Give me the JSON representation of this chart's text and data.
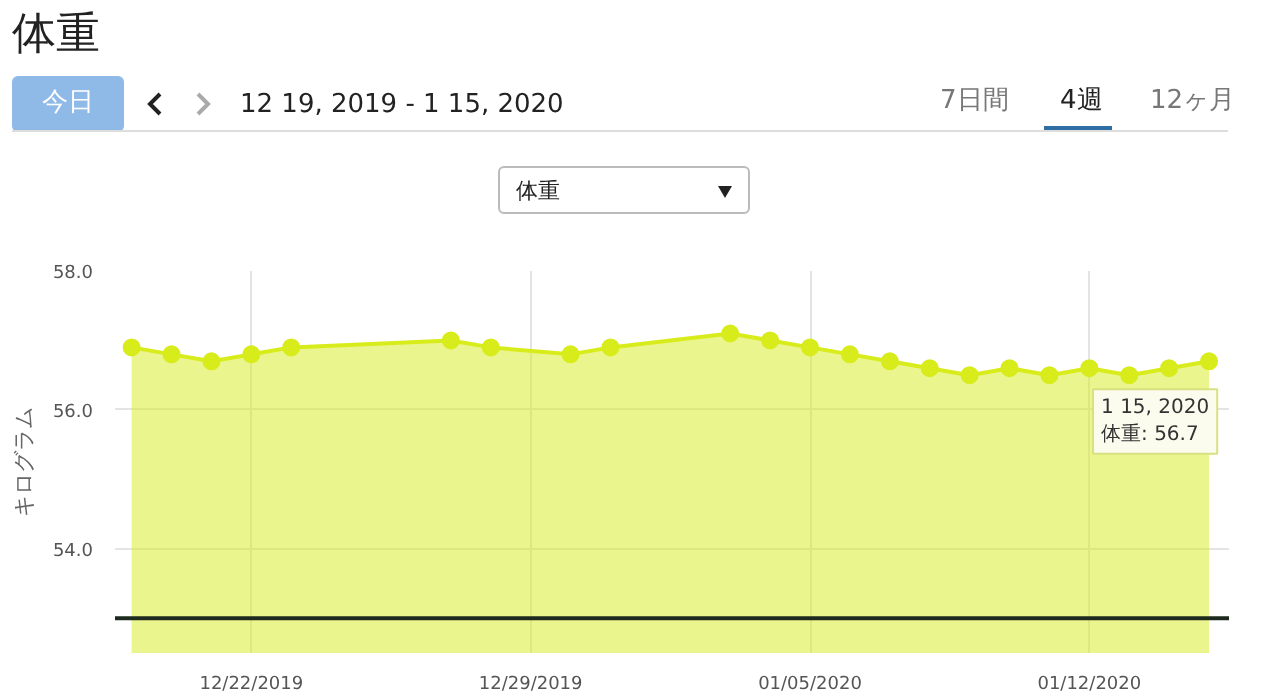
{
  "chart_data": {
    "type": "area",
    "title": "体重",
    "ylabel": "キログラム",
    "annotations": [
      "今日",
      "12 19, 2019 - 1 15, 2020",
      "7日間",
      "4週",
      "12ヶ月",
      "体重",
      {
        "text": "1 15, 2020\n体重: 56.7",
        "x": "2020-01-15",
        "y": 56.7
      }
    ],
    "x": [
      "2019-12-19",
      "2019-12-20",
      "2019-12-21",
      "2019-12-22",
      "2019-12-23",
      "2019-12-27",
      "2019-12-28",
      "2019-12-30",
      "2019-12-31",
      "2020-01-03",
      "2020-01-04",
      "2020-01-05",
      "2020-01-06",
      "2020-01-07",
      "2020-01-08",
      "2020-01-09",
      "2020-01-10",
      "2020-01-11",
      "2020-01-12",
      "2020-01-13",
      "2020-01-14",
      "2020-01-15"
    ],
    "values": [
      56.9,
      56.8,
      56.7,
      56.8,
      56.9,
      57.0,
      56.9,
      56.8,
      56.9,
      57.1,
      57.0,
      56.9,
      56.8,
      56.7,
      56.6,
      56.5,
      56.6,
      56.5,
      56.6,
      56.5,
      56.6,
      56.7
    ],
    "color": "#d8ec1c",
    "xlim": [
      "2019-12-18T14:00",
      "2020-01-15T12:00"
    ],
    "ylim": [
      52.5,
      58.0
    ],
    "xticks": [
      {
        "value": "2019-12-22",
        "label": "12/22/2019"
      },
      {
        "value": "2019-12-29",
        "label": "12/29/2019"
      },
      {
        "value": "2020-01-05",
        "label": "01/05/2020"
      },
      {
        "value": "2020-01-12",
        "label": "01/12/2020"
      }
    ],
    "yticks": [
      {
        "value": 54.0,
        "label": "54.0"
      },
      {
        "value": 56.0,
        "label": "56.0"
      },
      {
        "value": 58.0,
        "label": "58.0"
      }
    ],
    "grid": true,
    "marker": "circle",
    "ref_lines": [
      {
        "axis": "y",
        "value": 53.0,
        "color": "#1e2a1e"
      }
    ]
  }
}
